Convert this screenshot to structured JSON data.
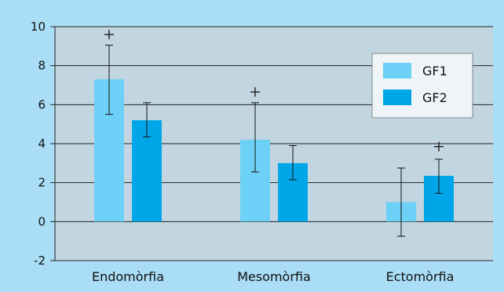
{
  "chart_data": {
    "type": "bar",
    "title": "",
    "xlabel": "",
    "ylabel": "",
    "categories": [
      "Endomòrfia",
      "Mesomòrfia",
      "Ectomòrfia"
    ],
    "series": [
      {
        "name": "GF1",
        "values": [
          7.3,
          4.2,
          1.0
        ],
        "error_low": [
          5.5,
          2.55,
          -0.75
        ],
        "error_high": [
          9.05,
          6.1,
          2.75
        ]
      },
      {
        "name": "GF2",
        "values": [
          5.2,
          3.0,
          2.35
        ],
        "error_low": [
          4.35,
          2.15,
          1.45
        ],
        "error_high": [
          6.1,
          3.9,
          3.2
        ]
      }
    ],
    "annotations": [
      {
        "category": "Endomòrfia",
        "series": "GF1",
        "symbol": "+",
        "y": 9.6
      },
      {
        "category": "Mesomòrfia",
        "series": "GF1",
        "symbol": "+",
        "y": 6.65
      },
      {
        "category": "Ectomòrfia",
        "series": "GF2",
        "symbol": "+",
        "y": 3.85
      }
    ],
    "ylim": [
      -2,
      10
    ],
    "yticks": [
      -2,
      0,
      2,
      4,
      6,
      8,
      10
    ],
    "grid": true,
    "legend": "top-right",
    "colors": {
      "background": "#a9def6",
      "plot_area": "#c1d6e0",
      "gridline": "#222222",
      "GF1": "#6dd0f6",
      "GF2": "#00a6e8",
      "legend_background": "#eef4f8"
    }
  }
}
